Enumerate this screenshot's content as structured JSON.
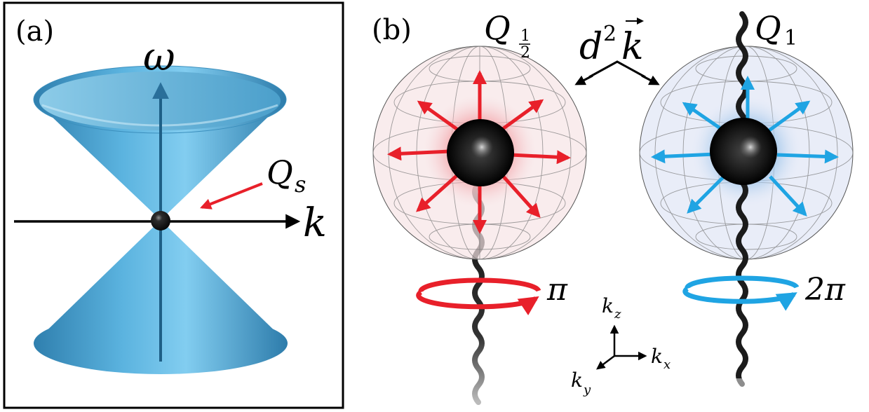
{
  "panel_a": {
    "label": "(a)",
    "omega": "ω",
    "k": "k",
    "q_main": "Q",
    "q_sub": "s"
  },
  "panel_b": {
    "label": "(b)",
    "left_q_main": "Q",
    "left_q_num": "1",
    "left_q_den": "2",
    "right_q_main": "Q",
    "right_q_sub": "1",
    "dk_d": "d",
    "dk_sup": "2",
    "dk_k": "k",
    "left_phase": "π",
    "right_phase": "2π",
    "axis_kz_main": "k",
    "axis_kz_sub": "z",
    "axis_kx_main": "k",
    "axis_kx_sub": "x",
    "axis_ky_main": "k",
    "axis_ky_sub": "y"
  },
  "colors": {
    "cone": "#5eb6e0",
    "red_arrow": "#e8202a",
    "blue_arrow": "#1fa4e3",
    "sphere_red": "#f6d9dc",
    "sphere_blue": "#dfe7f6",
    "monopole": "#111111"
  }
}
